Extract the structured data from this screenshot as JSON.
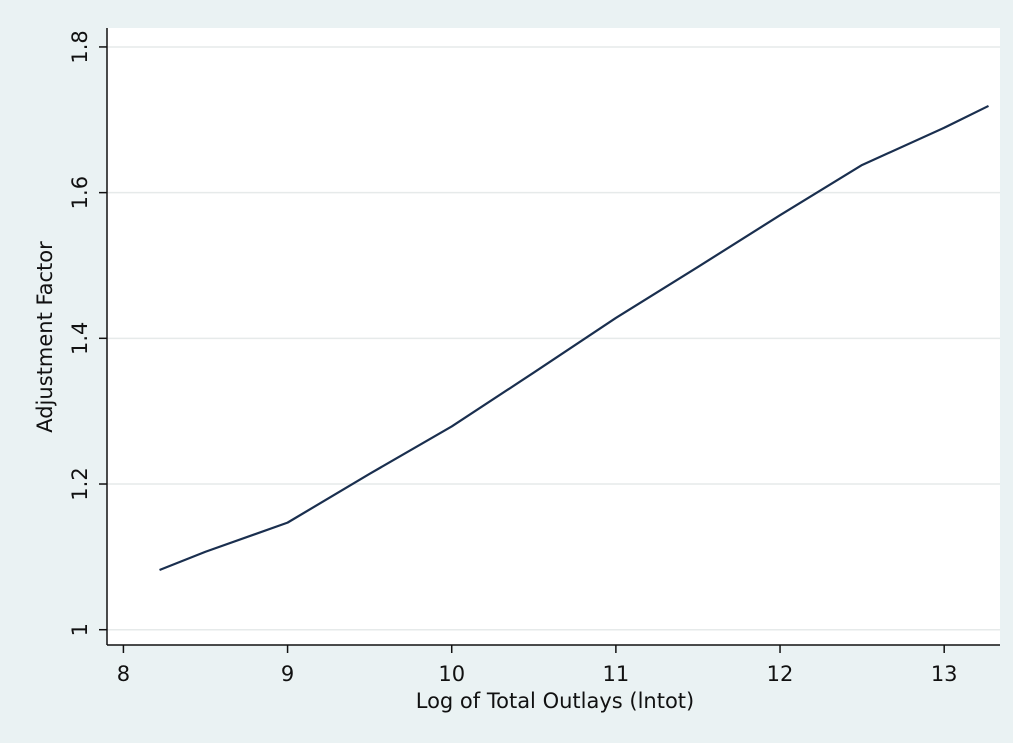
{
  "chart_data": {
    "type": "line",
    "x_label": "Log of Total Outlays (lntot)",
    "y_label": "Adjustment Factor",
    "x": [
      8.22,
      8.5,
      9,
      9.5,
      10,
      10.5,
      11,
      11.5,
      12,
      12.5,
      13,
      13.27
    ],
    "series": [
      {
        "color": "#1a2f4f",
        "values": [
          1.082,
          1.107,
          1.147,
          1.214,
          1.279,
          1.353,
          1.428,
          1.498,
          1.569,
          1.638,
          1.689,
          1.719
        ]
      }
    ],
    "xlim": [
      7.9,
      13.34
    ],
    "xticks": [
      8,
      9,
      10,
      11,
      12,
      13
    ],
    "ylim": [
      0.979,
      1.826
    ],
    "yticks": [
      1,
      1.2,
      1.4,
      1.6,
      1.8
    ],
    "grid": true
  }
}
